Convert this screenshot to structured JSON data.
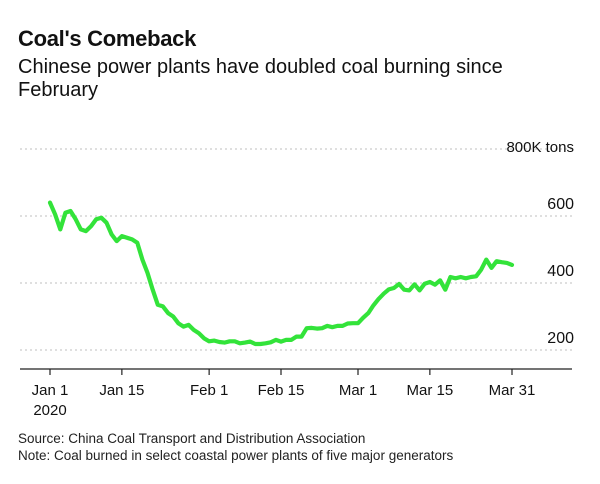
{
  "header": {
    "title": "Coal's Comeback",
    "subtitle": "Chinese power plants have doubled coal burning since February"
  },
  "footer": {
    "source": "Source: China Coal Transport and Distribution Association",
    "note": "Note: Coal burned in select coastal power plants of five major generators"
  },
  "colors": {
    "line": "#33e33a",
    "grid": "#bfbfbf",
    "axis": "#222222"
  },
  "chart_data": {
    "type": "line",
    "title": "Coal's Comeback",
    "subtitle": "Chinese power plants have doubled coal burning since February",
    "ylabel": "800K tons",
    "ylim": [
      150,
      800
    ],
    "yticks": [
      200,
      400,
      600
    ],
    "ytick_labels": [
      "200",
      "400",
      "600"
    ],
    "y_unit_label": "800K tons",
    "xticks": [
      {
        "day": 0,
        "label": "Jan 1",
        "sublabel": "2020"
      },
      {
        "day": 14,
        "label": "Jan 15",
        "sublabel": ""
      },
      {
        "day": 31,
        "label": "Feb 1",
        "sublabel": ""
      },
      {
        "day": 45,
        "label": "Feb 15",
        "sublabel": ""
      },
      {
        "day": 60,
        "label": "Mar 1",
        "sublabel": ""
      },
      {
        "day": 74,
        "label": "Mar 15",
        "sublabel": ""
      },
      {
        "day": 90,
        "label": "Mar 31",
        "sublabel": ""
      }
    ],
    "grid": "horizontal dotted",
    "series": [
      {
        "name": "",
        "x": [
          0,
          1,
          2,
          3,
          4,
          5,
          6,
          7,
          8,
          9,
          10,
          11,
          12,
          13,
          14,
          15,
          16,
          17,
          18,
          19,
          20,
          21,
          22,
          23,
          24,
          25,
          26,
          27,
          28,
          29,
          30,
          31,
          32,
          33,
          34,
          35,
          36,
          37,
          38,
          39,
          40,
          41,
          42,
          43,
          44,
          45,
          46,
          47,
          48,
          49,
          50,
          51,
          52,
          53,
          54,
          55,
          56,
          57,
          58,
          59,
          60,
          61,
          62,
          63,
          64,
          65,
          66,
          67,
          68,
          69,
          70,
          71,
          72,
          73,
          74,
          75,
          76,
          77,
          78,
          79,
          80,
          81,
          82,
          83,
          84,
          85,
          86,
          87,
          88,
          89,
          90
        ],
        "values": [
          640,
          605,
          560,
          610,
          615,
          590,
          560,
          555,
          570,
          590,
          595,
          580,
          545,
          525,
          540,
          535,
          530,
          520,
          470,
          430,
          380,
          335,
          330,
          310,
          300,
          280,
          270,
          275,
          260,
          250,
          235,
          226,
          228,
          224,
          222,
          226,
          226,
          220,
          222,
          225,
          218,
          218,
          220,
          223,
          230,
          225,
          230,
          230,
          240,
          240,
          265,
          266,
          264,
          265,
          272,
          268,
          272,
          272,
          279,
          280,
          280,
          296,
          310,
          333,
          352,
          368,
          381,
          385,
          397,
          380,
          378,
          396,
          378,
          398,
          403,
          395,
          408,
          380,
          418,
          414,
          418,
          414,
          418,
          420,
          440,
          470,
          445,
          465,
          462,
          460,
          454
        ]
      }
    ]
  }
}
